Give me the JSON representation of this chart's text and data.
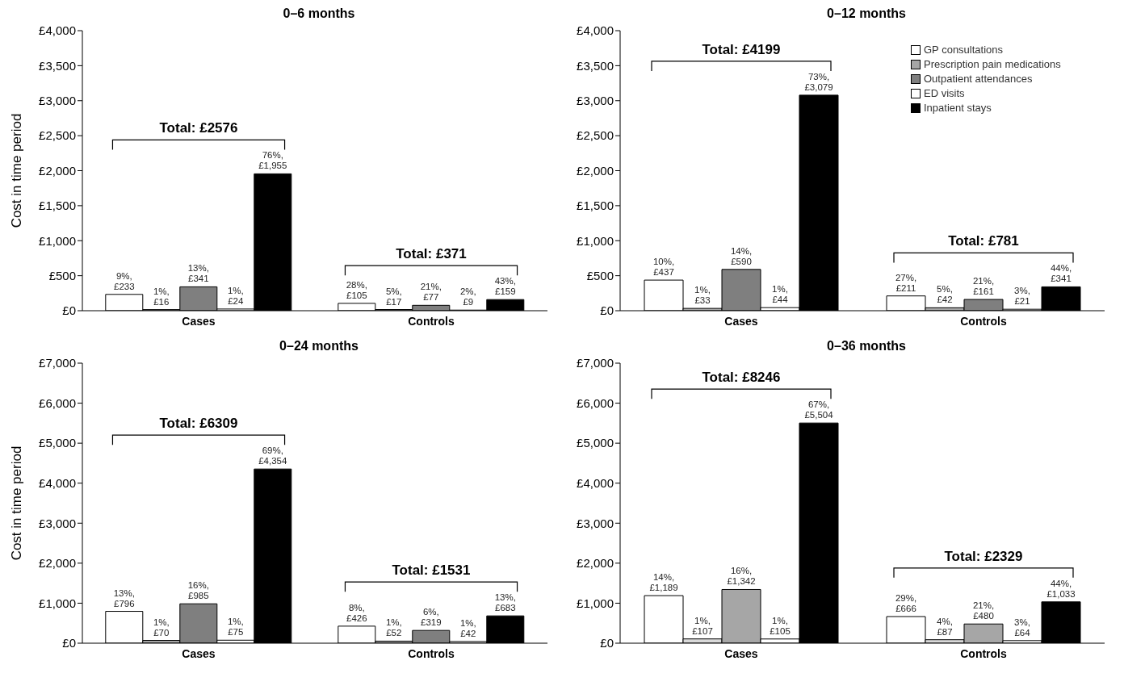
{
  "chart_data": [
    {
      "type": "bar",
      "title": "0–6 months",
      "ylabel": "Cost in time period",
      "categories": [
        "Cases",
        "Controls"
      ],
      "ylim": [
        0,
        4000
      ],
      "yticks": [
        {
          "value": 0,
          "label": "£0"
        },
        {
          "value": 500,
          "label": "£500"
        },
        {
          "value": 1000,
          "label": "£1,000"
        },
        {
          "value": 1500,
          "label": "£1,500"
        },
        {
          "value": 2000,
          "label": "£2,000"
        },
        {
          "value": 2500,
          "label": "£2,500"
        },
        {
          "value": 3000,
          "label": "£3,000"
        },
        {
          "value": 3500,
          "label": "£3,500"
        },
        {
          "value": 4000,
          "label": "£4,000"
        }
      ],
      "grid": false,
      "legend": false,
      "series": [
        {
          "color": "#ffffff",
          "values": [
            233,
            105
          ],
          "value_labels": [
            "9%, £233",
            "28%, £105"
          ]
        },
        {
          "color": "#a6a6a6",
          "values": [
            16,
            17
          ],
          "value_labels": [
            "1%, £16",
            "5%, £17"
          ]
        },
        {
          "color": "#7f7f7f",
          "values": [
            341,
            77
          ],
          "value_labels": [
            "13%, £341",
            "21%, £77"
          ]
        },
        {
          "color": "#ffffff",
          "values": [
            24,
            9
          ],
          "value_labels": [
            "1%, £24",
            "2%, £9"
          ]
        },
        {
          "color": "#000000",
          "values": [
            1955,
            159
          ],
          "value_labels": [
            "76%, £1,955",
            "43%, £159"
          ]
        }
      ],
      "annotations": [
        "Total: £2576",
        "Total: £371"
      ]
    },
    {
      "type": "bar",
      "title": "0–12 months",
      "categories": [
        "Cases",
        "Controls"
      ],
      "ylim": [
        0,
        4000
      ],
      "yticks": [
        {
          "value": 0,
          "label": "£0"
        },
        {
          "value": 500,
          "label": "£500"
        },
        {
          "value": 1000,
          "label": "£1,000"
        },
        {
          "value": 1500,
          "label": "£1,500"
        },
        {
          "value": 2000,
          "label": "£2,000"
        },
        {
          "value": 2500,
          "label": "£2,500"
        },
        {
          "value": 3000,
          "label": "£3,000"
        },
        {
          "value": 3500,
          "label": "£3,500"
        },
        {
          "value": 4000,
          "label": "£4,000"
        }
      ],
      "grid": false,
      "legend": "top right",
      "series": [
        {
          "name": "GP consultations",
          "color": "#ffffff",
          "values": [
            437,
            211
          ],
          "value_labels": [
            "10%, £437",
            "27%, £211"
          ]
        },
        {
          "name": "Prescription pain medications",
          "color": "#a6a6a6",
          "values": [
            33,
            42
          ],
          "value_labels": [
            "1%, £33",
            "5%, £42"
          ]
        },
        {
          "name": "Outpatient attendances",
          "color": "#7f7f7f",
          "values": [
            590,
            161
          ],
          "value_labels": [
            "14%, £590",
            "21%, £161"
          ]
        },
        {
          "name": "ED visits",
          "color": "#ffffff",
          "values": [
            44,
            21
          ],
          "value_labels": [
            "1%, £44",
            "3%, £21"
          ]
        },
        {
          "name": "Inpatient stays",
          "color": "#000000",
          "values": [
            3079,
            341
          ],
          "value_labels": [
            "73%, £3,079",
            "44%, £341"
          ]
        }
      ],
      "annotations": [
        "Total: £4199",
        "Total: £781"
      ]
    },
    {
      "type": "bar",
      "title": "0–24 months",
      "ylabel": "Cost in time period",
      "categories": [
        "Cases",
        "Controls"
      ],
      "ylim": [
        0,
        7000
      ],
      "yticks": [
        {
          "value": 0,
          "label": "£0"
        },
        {
          "value": 1000,
          "label": "£1,000"
        },
        {
          "value": 2000,
          "label": "£2,000"
        },
        {
          "value": 3000,
          "label": "£3,000"
        },
        {
          "value": 4000,
          "label": "£4,000"
        },
        {
          "value": 5000,
          "label": "£5,000"
        },
        {
          "value": 6000,
          "label": "£6,000"
        },
        {
          "value": 7000,
          "label": "£7,000"
        }
      ],
      "grid": false,
      "legend": false,
      "series": [
        {
          "color": "#ffffff",
          "values": [
            796,
            426
          ],
          "value_labels": [
            "13%, £796",
            "8%, £426"
          ]
        },
        {
          "color": "#a6a6a6",
          "values": [
            70,
            52
          ],
          "value_labels": [
            "1%, £70",
            "1%, £52"
          ]
        },
        {
          "color": "#7f7f7f",
          "values": [
            985,
            319
          ],
          "value_labels": [
            "16%, £985",
            "6%, £319"
          ]
        },
        {
          "color": "#ffffff",
          "values": [
            75,
            42
          ],
          "value_labels": [
            "1%, £75",
            "1%, £42"
          ]
        },
        {
          "color": "#000000",
          "values": [
            4354,
            683
          ],
          "value_labels": [
            "69%, £4,354",
            "13%, £683"
          ]
        }
      ],
      "annotations": [
        "Total: £6309",
        "Total: £1531"
      ]
    },
    {
      "type": "bar",
      "title": "0–36 months",
      "categories": [
        "Cases",
        "Controls"
      ],
      "ylim": [
        0,
        7000
      ],
      "yticks": [
        {
          "value": 0,
          "label": "£0"
        },
        {
          "value": 1000,
          "label": "£1,000"
        },
        {
          "value": 2000,
          "label": "£2,000"
        },
        {
          "value": 3000,
          "label": "£3,000"
        },
        {
          "value": 4000,
          "label": "£4,000"
        },
        {
          "value": 5000,
          "label": "£5,000"
        },
        {
          "value": 6000,
          "label": "£6,000"
        },
        {
          "value": 7000,
          "label": "£7,000"
        }
      ],
      "grid": false,
      "legend": false,
      "series": [
        {
          "color": "#ffffff",
          "values": [
            1189,
            666
          ],
          "value_labels": [
            "14%, £1,189",
            "29%, £666"
          ]
        },
        {
          "color": "#d9d9d9",
          "values": [
            107,
            87
          ],
          "value_labels": [
            "1%, £107",
            "4%, £87"
          ]
        },
        {
          "color": "#a6a6a6",
          "values": [
            1342,
            480
          ],
          "value_labels": [
            "16%, £1,342",
            "21%, £480"
          ]
        },
        {
          "color": "#ffffff",
          "values": [
            105,
            64
          ],
          "value_labels": [
            "1%, £105",
            "3%, £64"
          ]
        },
        {
          "color": "#000000",
          "values": [
            5504,
            1033
          ],
          "value_labels": [
            "67%, £5,504",
            "44%, £1,033"
          ]
        }
      ],
      "annotations": [
        "Total: £8246",
        "Total: £2329"
      ]
    }
  ]
}
